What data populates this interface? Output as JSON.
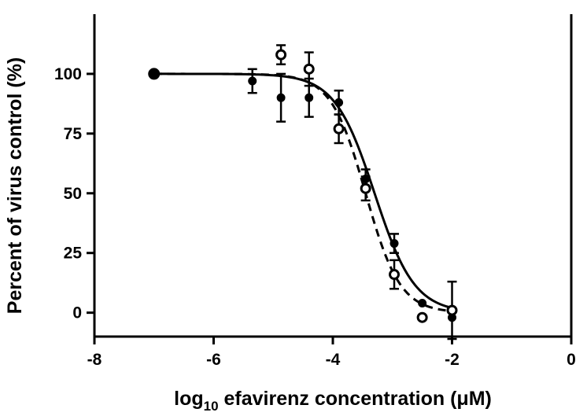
{
  "chart_data": {
    "type": "scatter",
    "xlabel": "log10 efavirenz concentration (μM)",
    "xlabel_parts": {
      "main": "log",
      "sub": "10",
      "rest": " efavirenz concentration (μM)"
    },
    "ylabel": "Percent of virus control (%)",
    "xlim": [
      -8,
      0
    ],
    "ylim": [
      -10,
      125
    ],
    "xticks": [
      -8,
      -6,
      -4,
      -2,
      0
    ],
    "xtick_labels": [
      "-8",
      "-6",
      "-4",
      "-2",
      "0"
    ],
    "yticks": [
      0,
      25,
      50,
      75,
      100
    ],
    "ytick_labels": [
      "0",
      "25",
      "50",
      "75",
      "100"
    ],
    "grid": false,
    "series": [
      {
        "marker": "filled-circle",
        "color": "#000000",
        "points": [
          {
            "x": -7.0,
            "y": 100,
            "err": 0
          },
          {
            "x": -5.35,
            "y": 97,
            "err": 5
          },
          {
            "x": -4.87,
            "y": 90,
            "err": 10
          },
          {
            "x": -4.4,
            "y": 90,
            "err": 8
          },
          {
            "x": -3.9,
            "y": 88,
            "err": 5
          },
          {
            "x": -3.45,
            "y": 56,
            "err": 4
          },
          {
            "x": -2.97,
            "y": 29,
            "err": 4
          },
          {
            "x": -2.5,
            "y": 4,
            "err": 0
          },
          {
            "x": -2.0,
            "y": -2,
            "err": 0
          }
        ],
        "fit": {
          "top": 100,
          "bottom": 0,
          "logEC50": -3.3,
          "hill": 1.3,
          "dash": false
        }
      },
      {
        "marker": "open-circle",
        "color": "#000000",
        "points": [
          {
            "x": -4.87,
            "y": 108,
            "err": 4
          },
          {
            "x": -4.4,
            "y": 102,
            "err": 7
          },
          {
            "x": -3.9,
            "y": 77,
            "err": 6
          },
          {
            "x": -3.45,
            "y": 52,
            "err": 5
          },
          {
            "x": -2.97,
            "y": 16,
            "err": 6
          },
          {
            "x": -2.5,
            "y": -2,
            "err": 0
          },
          {
            "x": -2.0,
            "y": 1,
            "err": 12
          }
        ],
        "fit": {
          "top": 100,
          "bottom": 0,
          "logEC50": -3.45,
          "hill": 1.5,
          "dash": true
        }
      }
    ]
  }
}
